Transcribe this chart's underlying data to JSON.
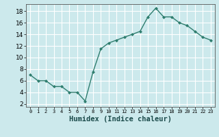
{
  "x": [
    0,
    1,
    2,
    3,
    4,
    5,
    6,
    7,
    8,
    9,
    10,
    11,
    12,
    13,
    14,
    15,
    16,
    17,
    18,
    19,
    20,
    21,
    22,
    23
  ],
  "y": [
    7.0,
    6.0,
    6.0,
    5.0,
    5.0,
    4.0,
    4.0,
    2.5,
    7.5,
    11.5,
    12.5,
    13.0,
    13.5,
    14.0,
    14.5,
    17.0,
    18.5,
    17.0,
    17.0,
    16.0,
    15.5,
    14.5,
    13.5,
    13.0
  ],
  "xlabel": "Humidex (Indice chaleur)",
  "xlim": [
    -0.5,
    23.5
  ],
  "ylim": [
    1.5,
    19.2
  ],
  "yticks": [
    2,
    4,
    6,
    8,
    10,
    12,
    14,
    16,
    18
  ],
  "xtick_labels": [
    "0",
    "1",
    "2",
    "3",
    "4",
    "5",
    "6",
    "7",
    "8",
    "9",
    "10",
    "11",
    "12",
    "13",
    "14",
    "15",
    "16",
    "17",
    "18",
    "19",
    "20",
    "21",
    "22",
    "23"
  ],
  "line_color": "#2e7d6e",
  "marker_color": "#2e7d6e",
  "bg_color": "#cce9ec",
  "grid_color": "#ffffff",
  "fig_bg": "#cce9ec"
}
